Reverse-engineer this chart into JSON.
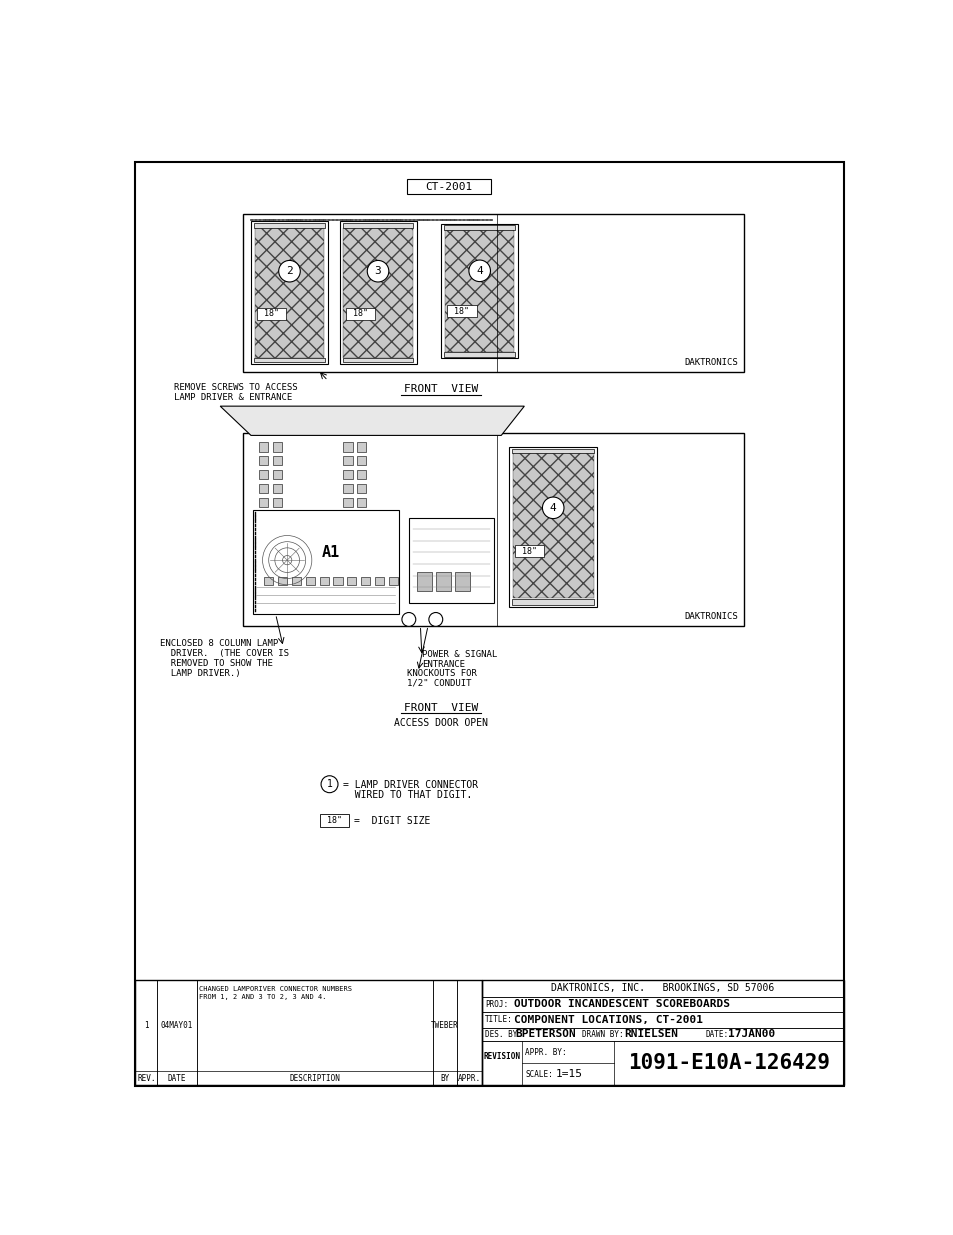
{
  "bg_color": "#ffffff",
  "title_box_text": "CT-2001",
  "front_view1_label": "FRONT  VIEW",
  "front_view2_label": "FRONT  VIEW",
  "access_door_label": "ACCESS DOOR OPEN",
  "daktronics": "DAKTRONICS",
  "ann1_l1": "REMOVE SCREWS TO ACCESS",
  "ann1_l2": "LAMP DRIVER & ENTRANCE",
  "ann2_l1": "ENCLOSED 8 COLUMN LAMP",
  "ann2_l2": "  DRIVER.  (THE COVER IS",
  "ann2_l3": "  REMOVED TO SHOW THE",
  "ann2_l4": "  LAMP DRIVER.)",
  "ann3_l1": "POWER & SIGNAL",
  "ann3_l2": "ENTRANCE",
  "ann4_l1": "KNOCKOUTS FOR",
  "ann4_l2": "1/2\" CONDUIT",
  "legend1_num": "1",
  "legend1_t1": "= LAMP DRIVER CONNECTOR",
  "legend1_t2": "  WIRED TO THAT DIGIT.",
  "legend2_box": "18\"",
  "legend2_txt": "=  DIGIT SIZE",
  "tb_company": "DAKTRONICS, INC.   BROOKINGS, SD 57006",
  "tb_proj_lbl": "PROJ:",
  "tb_proj": "OUTDOOR INCANDESCENT SCOREBOARDS",
  "tb_title_lbl": "TITLE:",
  "tb_title": "COMPONENT LOCATIONS, CT-2001",
  "tb_des_lbl": "DES. BY:",
  "tb_des": "BPETERSON",
  "tb_drawn_lbl": "DRAWN BY:",
  "tb_drawn": "RNIELSEN",
  "tb_date_lbl": "DATE:",
  "tb_date": "17JAN00",
  "tb_revision": "REVISION",
  "tb_appr_lbl": "APPR. BY:",
  "tb_scale_lbl": "SCALE:",
  "tb_scale": "1=15",
  "tb_drwnum": "1091-E10A-126429",
  "rev_hdr": [
    "REV.",
    "DATE",
    "DESCRIPTION",
    "BY",
    "APPR."
  ],
  "rev1": [
    "1",
    "04MAY01",
    "CHANGED LAMPORIVER CONNECTOR NUMBERS\nFROM 1, 2 AND 3 TO 2, 3 AND 4.",
    "TWEBER",
    ""
  ]
}
